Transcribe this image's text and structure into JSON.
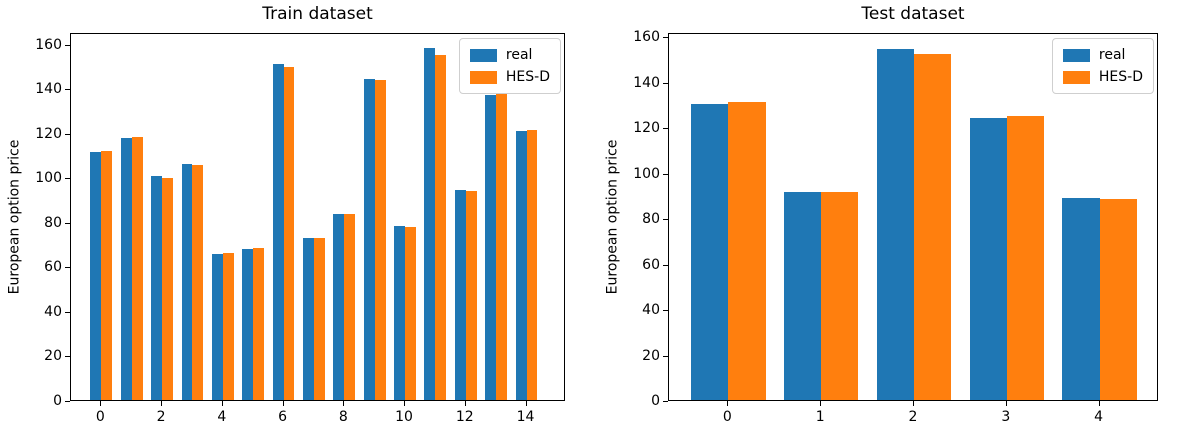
{
  "figure": {
    "background": "#ffffff",
    "text_color": "#000000"
  },
  "chart_data": [
    {
      "type": "bar",
      "title": "Train dataset",
      "xlabel": "",
      "ylabel": "European option price",
      "categories": [
        0,
        1,
        2,
        3,
        4,
        5,
        6,
        7,
        8,
        9,
        10,
        11,
        12,
        13,
        14
      ],
      "series": [
        {
          "name": "real",
          "color": "#1f77b4",
          "values": [
            111.3,
            117.7,
            100.4,
            106.0,
            65.6,
            67.9,
            150.8,
            72.7,
            83.3,
            144.0,
            78.0,
            158.0,
            94.3,
            136.8,
            120.6
          ]
        },
        {
          "name": "HES-D",
          "color": "#ff7f0e",
          "values": [
            111.9,
            118.2,
            99.8,
            105.5,
            66.2,
            68.4,
            149.4,
            72.8,
            83.3,
            143.6,
            77.6,
            154.7,
            93.7,
            137.3,
            121.2
          ]
        }
      ],
      "xticks": [
        0,
        2,
        4,
        6,
        8,
        10,
        12,
        14
      ],
      "yticks": [
        0,
        20,
        40,
        60,
        80,
        100,
        120,
        140,
        160
      ],
      "ylim": [
        0,
        165.2
      ],
      "xlim": [
        -1.0,
        15.3
      ],
      "bar_width": 0.36,
      "grid": false,
      "legend": {
        "position": "upper right",
        "entries": [
          "real",
          "HES-D"
        ]
      }
    },
    {
      "type": "bar",
      "title": "Test dataset",
      "xlabel": "",
      "ylabel": "European option price",
      "categories": [
        0,
        1,
        2,
        3,
        4
      ],
      "series": [
        {
          "name": "real",
          "color": "#1f77b4",
          "values": [
            130.4,
            91.4,
            154.6,
            124.0,
            88.9
          ]
        },
        {
          "name": "HES-D",
          "color": "#ff7f0e",
          "values": [
            130.9,
            91.4,
            152.4,
            124.8,
            88.4
          ]
        }
      ],
      "xticks": [
        0,
        1,
        2,
        3,
        4
      ],
      "yticks": [
        0,
        20,
        40,
        60,
        80,
        100,
        120,
        140,
        160
      ],
      "ylim": [
        0,
        161.9
      ],
      "xlim": [
        -0.64,
        4.64
      ],
      "bar_width": 0.4,
      "grid": false,
      "legend": {
        "position": "upper right",
        "entries": [
          "real",
          "HES-D"
        ]
      }
    }
  ]
}
